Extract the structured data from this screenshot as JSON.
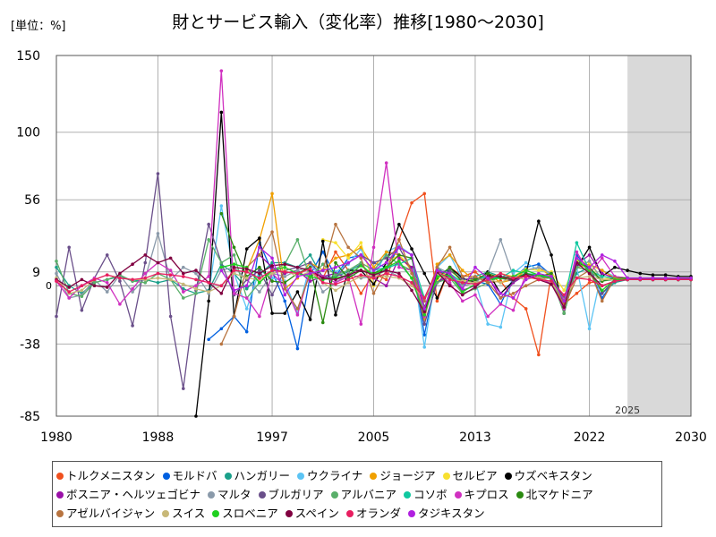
{
  "chart_data": {
    "type": "line",
    "title": "財とサービス輸入（変化率）推移[1980～2030]",
    "unit_label": "[単位：%]",
    "xlabel": "",
    "ylabel": "",
    "xlim": [
      1980,
      2030
    ],
    "ylim": [
      -85,
      150
    ],
    "x_ticks": [
      1980,
      1988,
      1997,
      2005,
      2013,
      2022,
      2030
    ],
    "y_ticks": [
      150,
      100,
      56,
      9,
      -38,
      -85
    ],
    "zero_label": "0",
    "forecast_start": 2025,
    "forecast_label": "2025",
    "x": [
      1980,
      1981,
      1982,
      1983,
      1984,
      1985,
      1986,
      1987,
      1988,
      1989,
      1990,
      1991,
      1992,
      1993,
      1994,
      1995,
      1996,
      1997,
      1998,
      1999,
      2000,
      2001,
      2002,
      2003,
      2004,
      2005,
      2006,
      2007,
      2008,
      2009,
      2010,
      2011,
      2012,
      2013,
      2014,
      2015,
      2016,
      2017,
      2018,
      2019,
      2020,
      2021,
      2022,
      2023,
      2024,
      2025,
      2026,
      2027,
      2028,
      2029,
      2030
    ],
    "series": [
      {
        "name": "トルクメニスタン",
        "color": "#f0501e",
        "values": [
          null,
          null,
          null,
          null,
          null,
          null,
          null,
          null,
          null,
          null,
          null,
          null,
          null,
          null,
          null,
          null,
          null,
          null,
          null,
          null,
          null,
          5,
          22,
          10,
          -5,
          8,
          4,
          30,
          54,
          60,
          -10,
          12,
          6,
          9,
          2,
          3,
          -8,
          -15,
          -45,
          8,
          -12,
          -5,
          2,
          3,
          5,
          4,
          4,
          4,
          4,
          4,
          4
        ]
      },
      {
        "name": "モルドバ",
        "color": "#0060e0",
        "values": [
          null,
          null,
          null,
          null,
          null,
          null,
          null,
          null,
          null,
          null,
          null,
          null,
          -35,
          -28,
          -20,
          -30,
          28,
          9,
          -10,
          -41,
          7,
          22,
          6,
          18,
          20,
          15,
          12,
          25,
          20,
          -32,
          8,
          10,
          4,
          3,
          1,
          -12,
          5,
          12,
          14,
          7,
          -15,
          20,
          10,
          -8,
          4,
          5,
          5,
          5,
          5,
          5,
          5
        ]
      },
      {
        "name": "ハンガリー",
        "color": "#1aa08a",
        "values": [
          12,
          0,
          -5,
          2,
          4,
          6,
          3,
          4,
          2,
          4,
          -2,
          -5,
          -3,
          14,
          8,
          -2,
          7,
          15,
          15,
          12,
          20,
          5,
          6,
          9,
          14,
          6,
          11,
          15,
          5,
          -15,
          12,
          5,
          0,
          6,
          9,
          6,
          5,
          8,
          6,
          5,
          -8,
          8,
          12,
          -5,
          2,
          4,
          4,
          4,
          4,
          4,
          4
        ]
      },
      {
        "name": "ウクライナ",
        "color": "#5cc4f4",
        "values": [
          null,
          null,
          null,
          null,
          null,
          null,
          null,
          null,
          null,
          null,
          null,
          null,
          -5,
          52,
          8,
          -15,
          10,
          5,
          3,
          -18,
          14,
          4,
          9,
          14,
          24,
          5,
          22,
          26,
          20,
          -40,
          12,
          20,
          4,
          3,
          -25,
          -27,
          8,
          15,
          10,
          8,
          -10,
          12,
          -28,
          10,
          6,
          5,
          5,
          5,
          5,
          5,
          5
        ]
      },
      {
        "name": "ジョージア",
        "color": "#f0a000",
        "values": [
          null,
          null,
          null,
          null,
          null,
          null,
          null,
          null,
          null,
          null,
          null,
          null,
          null,
          null,
          null,
          10,
          30,
          60,
          -2,
          5,
          15,
          10,
          18,
          20,
          25,
          12,
          22,
          20,
          10,
          -22,
          14,
          20,
          10,
          3,
          8,
          2,
          4,
          10,
          12,
          6,
          -15,
          12,
          14,
          10,
          5,
          5,
          5,
          5,
          5,
          5,
          5
        ]
      },
      {
        "name": "セルビア",
        "color": "#f8e030",
        "values": [
          null,
          null,
          null,
          null,
          null,
          null,
          null,
          null,
          null,
          null,
          null,
          null,
          null,
          null,
          null,
          null,
          null,
          null,
          null,
          null,
          null,
          30,
          28,
          18,
          28,
          0,
          15,
          20,
          12,
          -18,
          4,
          10,
          3,
          4,
          5,
          8,
          6,
          11,
          10,
          9,
          -3,
          16,
          15,
          4,
          6,
          5,
          5,
          5,
          5,
          5,
          5
        ]
      },
      {
        "name": "ウズベキスタン",
        "color": "#000000",
        "values": [
          null,
          null,
          null,
          null,
          null,
          null,
          null,
          null,
          null,
          null,
          null,
          -85,
          -10,
          113,
          -20,
          24,
          31,
          -18,
          -18,
          -4,
          -22,
          29,
          -19,
          10,
          10,
          1,
          15,
          40,
          24,
          8,
          -8,
          12,
          5,
          2,
          9,
          -5,
          3,
          8,
          42,
          20,
          -18,
          12,
          25,
          6,
          12,
          10,
          8,
          7,
          7,
          6,
          6
        ]
      },
      {
        "name": "ボスニア・ヘルツェゴビナ",
        "color": "#9a10a8",
        "values": [
          null,
          null,
          null,
          null,
          null,
          null,
          null,
          null,
          null,
          null,
          null,
          null,
          null,
          null,
          null,
          null,
          20,
          12,
          8,
          10,
          3,
          6,
          8,
          5,
          14,
          5,
          0,
          18,
          12,
          -15,
          2,
          7,
          -3,
          0,
          6,
          -8,
          2,
          7,
          6,
          1,
          -10,
          14,
          20,
          8,
          5,
          4,
          4,
          4,
          4,
          4,
          4
        ]
      },
      {
        "name": "マルタ",
        "color": "#8a9aaa",
        "values": [
          8,
          -8,
          -6,
          4,
          -4,
          7,
          -4,
          5,
          34,
          4,
          12,
          8,
          -5,
          10,
          12,
          4,
          -4,
          8,
          6,
          10,
          12,
          -4,
          2,
          8,
          5,
          6,
          10,
          6,
          2,
          -15,
          12,
          8,
          0,
          2,
          8,
          30,
          6,
          10,
          12,
          8,
          -14,
          12,
          16,
          4,
          4,
          4,
          4,
          4,
          4,
          4,
          4
        ]
      },
      {
        "name": "ブルガリア",
        "color": "#6a4f8a",
        "values": [
          -20,
          25,
          -16,
          5,
          20,
          3,
          -26,
          15,
          73,
          -20,
          -67,
          -3,
          40,
          15,
          -6,
          4,
          10,
          -6,
          10,
          12,
          15,
          6,
          5,
          15,
          20,
          15,
          18,
          25,
          10,
          -25,
          2,
          10,
          4,
          5,
          5,
          5,
          3,
          7,
          5,
          5,
          -8,
          15,
          12,
          -5,
          4,
          4,
          4,
          4,
          4,
          4,
          4
        ]
      },
      {
        "name": "アルバニア",
        "color": "#5aaf6a",
        "values": [
          16,
          -5,
          -7,
          2,
          4,
          7,
          3,
          2,
          8,
          4,
          -8,
          -5,
          30,
          15,
          20,
          -8,
          2,
          10,
          14,
          30,
          5,
          14,
          7,
          10,
          15,
          10,
          20,
          14,
          10,
          -8,
          2,
          5,
          -5,
          -2,
          2,
          6,
          5,
          6,
          7,
          5,
          -18,
          12,
          10,
          3,
          4,
          4,
          4,
          4,
          4,
          4,
          4
        ]
      },
      {
        "name": "コソボ",
        "color": "#10c8a0",
        "values": [
          null,
          null,
          null,
          null,
          null,
          null,
          null,
          null,
          null,
          null,
          null,
          null,
          null,
          null,
          null,
          null,
          null,
          null,
          null,
          null,
          null,
          null,
          null,
          null,
          null,
          10,
          12,
          14,
          18,
          -8,
          10,
          8,
          2,
          4,
          6,
          5,
          10,
          8,
          7,
          6,
          -10,
          28,
          10,
          6,
          5,
          5,
          5,
          5,
          5,
          5,
          5
        ]
      },
      {
        "name": "キプロス",
        "color": "#d030c0",
        "values": [
          3,
          -8,
          0,
          5,
          2,
          -12,
          -2,
          8,
          15,
          10,
          -4,
          0,
          6,
          140,
          -5,
          -8,
          -20,
          8,
          0,
          -19,
          10,
          6,
          2,
          6,
          -25,
          25,
          80,
          12,
          10,
          -20,
          8,
          2,
          -10,
          -6,
          -20,
          -12,
          -16,
          8,
          5,
          2,
          -15,
          22,
          8,
          18,
          6,
          5,
          5,
          5,
          5,
          5,
          5
        ]
      },
      {
        "name": "北マケドニア",
        "color": "#2a8a10",
        "values": [
          null,
          null,
          null,
          null,
          null,
          null,
          null,
          null,
          null,
          null,
          null,
          null,
          null,
          47,
          25,
          6,
          12,
          3,
          2,
          8,
          12,
          -24,
          15,
          5,
          10,
          8,
          12,
          20,
          18,
          -14,
          5,
          12,
          2,
          4,
          8,
          5,
          4,
          8,
          6,
          8,
          -10,
          15,
          12,
          3,
          5,
          5,
          5,
          5,
          5,
          5,
          5
        ]
      },
      {
        "name": "アゼルバイジャン",
        "color": "#b87440",
        "values": [
          null,
          null,
          null,
          null,
          null,
          null,
          null,
          null,
          null,
          null,
          null,
          null,
          null,
          -38,
          -20,
          12,
          20,
          35,
          -2,
          -15,
          8,
          10,
          40,
          25,
          18,
          -5,
          10,
          30,
          8,
          -10,
          12,
          25,
          6,
          6,
          2,
          -8,
          -5,
          0,
          4,
          6,
          -14,
          5,
          10,
          -10,
          5,
          4,
          4,
          4,
          4,
          4,
          4
        ]
      },
      {
        "name": "スイス",
        "color": "#c8b878",
        "values": [
          5,
          -5,
          -3,
          4,
          7,
          5,
          4,
          4,
          5,
          4,
          1,
          -2,
          -4,
          0,
          8,
          5,
          4,
          8,
          10,
          6,
          9,
          2,
          -3,
          2,
          6,
          7,
          6,
          5,
          0,
          -8,
          8,
          4,
          3,
          2,
          4,
          2,
          6,
          4,
          6,
          2,
          -9,
          5,
          6,
          4,
          4,
          4,
          4,
          4,
          4,
          4,
          4
        ]
      },
      {
        "name": "スロベニア",
        "color": "#20d020",
        "values": [
          null,
          null,
          null,
          null,
          null,
          null,
          null,
          null,
          null,
          null,
          null,
          null,
          null,
          12,
          14,
          12,
          2,
          10,
          12,
          8,
          6,
          4,
          5,
          7,
          13,
          7,
          12,
          16,
          5,
          -19,
          6,
          7,
          -4,
          1,
          4,
          5,
          6,
          10,
          7,
          5,
          -10,
          18,
          9,
          -3,
          4,
          4,
          4,
          4,
          4,
          4,
          4
        ]
      },
      {
        "name": "スペイン",
        "color": "#800040",
        "values": [
          4,
          -1,
          4,
          0,
          -1,
          8,
          14,
          20,
          15,
          18,
          8,
          10,
          2,
          -5,
          12,
          11,
          8,
          13,
          14,
          12,
          10,
          5,
          4,
          7,
          10,
          7,
          10,
          8,
          -3,
          -17,
          9,
          0,
          -6,
          -1,
          6,
          6,
          4,
          7,
          4,
          1,
          -14,
          15,
          8,
          0,
          3,
          4,
          4,
          4,
          4,
          4,
          4
        ]
      },
      {
        "name": "オランダ",
        "color": "#e81e60",
        "values": [
          3,
          -4,
          0,
          4,
          7,
          5,
          4,
          5,
          8,
          7,
          6,
          4,
          2,
          0,
          10,
          9,
          5,
          10,
          9,
          8,
          11,
          2,
          1,
          4,
          7,
          5,
          8,
          6,
          2,
          -8,
          10,
          4,
          2,
          1,
          4,
          8,
          5,
          6,
          4,
          3,
          -6,
          5,
          4,
          0,
          3,
          4,
          4,
          4,
          4,
          4,
          4
        ]
      },
      {
        "name": "タジキスタン",
        "color": "#b020e0",
        "values": [
          null,
          null,
          null,
          null,
          null,
          null,
          null,
          null,
          null,
          null,
          null,
          null,
          null,
          10,
          -3,
          0,
          25,
          18,
          -6,
          6,
          8,
          10,
          12,
          15,
          20,
          10,
          15,
          25,
          20,
          -15,
          10,
          8,
          -2,
          12,
          5,
          -5,
          -8,
          4,
          8,
          6,
          -10,
          18,
          12,
          20,
          16,
          5,
          5,
          5,
          5,
          5,
          5
        ]
      }
    ],
    "legend_rows": [
      [
        "トルクメニスタン",
        "モルドバ",
        "ハンガリー",
        "ウクライナ",
        "ジョージア",
        "セルビア",
        "ウズベキスタン"
      ],
      [
        "ボスニア・ヘルツェゴビナ",
        "マルタ",
        "ブルガリア",
        "アルバニア",
        "コソボ",
        "キプロス",
        "北マケドニア"
      ],
      [
        "アゼルバイジャン",
        "スイス",
        "スロベニア",
        "スペイン",
        "オランダ",
        "タジキスタン"
      ]
    ]
  }
}
